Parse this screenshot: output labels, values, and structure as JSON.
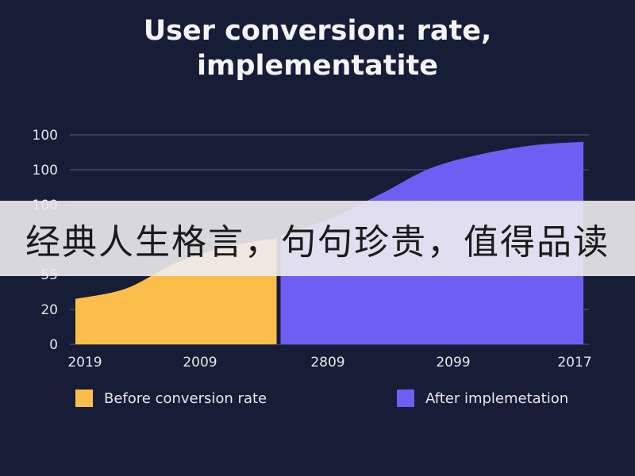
{
  "chart_data": {
    "type": "area",
    "title_line1": "User conversion: rate,",
    "title_line2": "implementatite",
    "y_tick_labels": [
      "100",
      "100",
      "100",
      "55",
      "20",
      "0"
    ],
    "x_tick_labels": [
      "2019",
      "2009",
      "2809",
      "2099",
      "2017"
    ],
    "ylim": [
      0,
      120
    ],
    "grid": true,
    "series": [
      {
        "name": "Before conversion rate",
        "color": "#fdbd4a",
        "points": [
          [
            0,
            26
          ],
          [
            0.25,
            32
          ],
          [
            0.5,
            47
          ],
          [
            0.75,
            56
          ],
          [
            1,
            61
          ]
        ]
      },
      {
        "name": "After implemetation",
        "color": "#6e5ff4",
        "points": [
          [
            1,
            62
          ],
          [
            1.25,
            72
          ],
          [
            1.5,
            86
          ],
          [
            1.75,
            101
          ],
          [
            2,
            109
          ],
          [
            2.25,
            114
          ],
          [
            2.5,
            116
          ]
        ]
      }
    ]
  },
  "banner": {
    "text": "经典人生格言，句句珍贵，值得品读",
    "color": "#ececee"
  }
}
